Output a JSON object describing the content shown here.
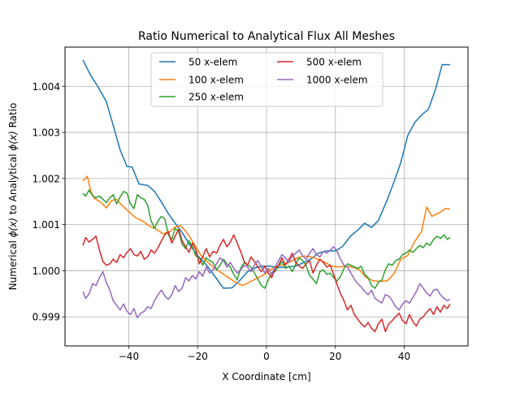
{
  "chart_data": {
    "type": "line",
    "title": "Ratio Numerical to Analytical Flux All Meshes",
    "xlabel": "X Coordinate [cm]",
    "ylabel_parts": [
      "Numerical ",
      "ϕ(x)",
      " to Analytical ",
      "ϕ(x)",
      " Ratio"
    ],
    "xlim": [
      -58.5,
      58.5
    ],
    "ylim": [
      0.99837,
      1.00485
    ],
    "grid": true,
    "legend_position": "top-center",
    "x_ticks": [
      -40,
      -20,
      0,
      20,
      40
    ],
    "x_tick_labels": [
      "−40",
      "−20",
      "0",
      "20",
      "40"
    ],
    "y_ticks": [
      0.999,
      1.0,
      1.001,
      1.002,
      1.003,
      1.004
    ],
    "y_tick_labels": [
      "0.999",
      "1.000",
      "1.001",
      "1.002",
      "1.003",
      "1.004"
    ],
    "series": [
      {
        "name": "50 x-elem",
        "color": "#1f77b4",
        "x": [
          -53.3,
          -51,
          -49,
          -46.5,
          -44.5,
          -42.5,
          -40.5,
          -39,
          -37,
          -34.5,
          -32.5,
          -30.5,
          -28.5,
          -26.5,
          -24.5,
          -22,
          -20,
          -17.5,
          -15,
          -12.5,
          -10,
          -8,
          -5.5,
          -3,
          -1,
          1,
          3.5,
          6,
          8.5,
          10.5,
          13,
          15,
          17.5,
          20,
          22,
          24.5,
          26.5,
          28.5,
          30.5,
          32.5,
          35,
          37,
          39,
          41,
          43,
          45,
          47,
          49,
          51,
          53.3
        ],
        "y": [
          1.00457,
          1.00423,
          1.004,
          1.00367,
          1.00315,
          1.00262,
          1.00226,
          1.00225,
          1.00188,
          1.00185,
          1.00172,
          1.00149,
          1.00124,
          1.00103,
          1.00083,
          1.00053,
          1.00033,
          1.00013,
          0.99988,
          0.99962,
          0.99963,
          0.99977,
          0.99998,
          1.00007,
          1.0001,
          1.0001,
          1.00007,
          1.00008,
          1.0001,
          1.00017,
          1.00026,
          1.00038,
          1.00043,
          1.00043,
          1.00052,
          1.00076,
          1.00088,
          1.00103,
          1.00094,
          1.00109,
          1.00153,
          1.00192,
          1.00235,
          1.00293,
          1.00321,
          1.00338,
          1.0035,
          1.00392,
          1.00447,
          1.00447
        ]
      },
      {
        "name": "100 x-elem",
        "color": "#ff7f0e",
        "x": [
          -53.3,
          -52,
          -51,
          -50,
          -48,
          -46.5,
          -45,
          -43.5,
          -42,
          -40,
          -38,
          -36,
          -34,
          -32,
          -30,
          -28,
          -26.5,
          -25,
          -23,
          -21,
          -19,
          -17,
          -15,
          -13,
          -11,
          -9,
          -7,
          -5,
          -3,
          -1,
          1,
          3,
          5,
          7,
          9,
          11,
          13,
          15,
          17,
          19,
          21,
          23,
          25,
          27,
          29,
          31,
          33,
          35,
          37,
          39,
          41,
          43,
          45,
          46.5,
          48,
          50,
          52,
          53.3
        ],
        "y": [
          1.00195,
          1.00205,
          1.00172,
          1.00157,
          1.00148,
          1.00136,
          1.00152,
          1.00155,
          1.00142,
          1.00128,
          1.00115,
          1.00108,
          1.00097,
          1.0009,
          1.0008,
          1.00085,
          1.00095,
          1.00098,
          1.00082,
          1.00058,
          1.00033,
          1.00018,
          1.00005,
          0.99995,
          0.99985,
          0.99975,
          0.99968,
          0.99975,
          0.99983,
          0.9999,
          1.00002,
          1.0001,
          1.00013,
          1.0002,
          1.00028,
          1.00032,
          1.0003,
          1.00025,
          1.00018,
          1.0001,
          1.00008,
          1.0001,
          1.00008,
          1.00002,
          0.99985,
          0.99978,
          0.99977,
          0.99978,
          0.99993,
          1.00025,
          1.00033,
          1.00063,
          1.00085,
          1.00138,
          1.00118,
          1.00125,
          1.00135,
          1.00134
        ]
      },
      {
        "name": "250 x-elem",
        "color": "#2ca02c",
        "x": [
          -53.3,
          -52.5,
          -51.5,
          -50.5,
          -49.5,
          -48.5,
          -47.5,
          -46.5,
          -45.5,
          -44.5,
          -43.5,
          -42.5,
          -41.5,
          -40.5,
          -39.5,
          -38.5,
          -37.5,
          -36.5,
          -35.5,
          -34.5,
          -33.5,
          -32.5,
          -31.5,
          -30.5,
          -29.5,
          -28.5,
          -27.5,
          -26.5,
          -25.5,
          -24.5,
          -23.5,
          -22.5,
          -21.5,
          -20.5,
          -19.5,
          -18.5,
          -17.5,
          -16.5,
          -15.5,
          -14.5,
          -13.5,
          -12.5,
          -11.5,
          -10.5,
          -9.5,
          -8.5,
          -7.5,
          -6.5,
          -5.5,
          -4.5,
          -3.5,
          -2.5,
          -1.5,
          -0.5,
          0.5,
          1.5,
          2.5,
          3.5,
          4.5,
          5.5,
          6.5,
          7.5,
          8.5,
          9.5,
          10.5,
          11.5,
          12.5,
          13.5,
          14.5,
          15.5,
          16.5,
          17.5,
          18.5,
          19.5,
          20.5,
          21.5,
          22.5,
          23.5,
          24.5,
          25.5,
          26.5,
          27.5,
          28.5,
          29.5,
          30.5,
          31.5,
          32.5,
          33.5,
          34.5,
          35.5,
          36.5,
          37.5,
          38.5,
          39.5,
          40.5,
          41.5,
          42.5,
          43.5,
          44.5,
          45.5,
          46.5,
          47.5,
          48.5,
          49.5,
          50.5,
          51.5,
          52.5,
          53.3
        ],
        "y": [
          1.00168,
          1.00162,
          1.00175,
          1.00163,
          1.00158,
          1.00162,
          1.00155,
          1.00148,
          1.00158,
          1.00165,
          1.00145,
          1.0016,
          1.00172,
          1.00168,
          1.00145,
          1.00135,
          1.00165,
          1.00158,
          1.00155,
          1.00142,
          1.00108,
          1.00092,
          1.00108,
          1.00118,
          1.00112,
          1.00078,
          1.00068,
          1.00092,
          1.00085,
          1.00058,
          1.00048,
          1.00065,
          1.00052,
          1.00032,
          1.00028,
          1.00012,
          1.00028,
          1.00022,
          1.00018,
          1.00002,
          1.00012,
          1.00025,
          1.00015,
          1.00008,
          0.99992,
          0.9998,
          1.00005,
          1.00018,
          1.00012,
          1.00008,
          0.99995,
          0.99982,
          0.99968,
          0.99962,
          0.9998,
          0.99995,
          0.99998,
          1.0001,
          1.0002,
          1.00005,
          1.0001,
          0.99998,
          1.00015,
          1.00028,
          1.00022,
          1.00012,
          0.9999,
          0.99982,
          0.99972,
          0.99998,
          1.00002,
          0.99992,
          0.99995,
          0.99985,
          0.99978,
          0.99988,
          1.00005,
          1.00015,
          1.00012,
          1.00008,
          1.00005,
          1.0001,
          0.99992,
          0.99985,
          0.99968,
          0.99962,
          0.99975,
          0.9998,
          1.00002,
          1.00015,
          1.00012,
          1.00022,
          1.00025,
          1.00035,
          1.00038,
          1.00045,
          1.0004,
          1.00048,
          1.00055,
          1.0005,
          1.0006,
          1.00055,
          1.00068,
          1.00075,
          1.0007,
          1.00078,
          1.00068,
          1.00072
        ]
      },
      {
        "name": "500 x-elem",
        "color": "#d62728",
        "x": [
          -53.3,
          -52.5,
          -51.5,
          -50.5,
          -49.5,
          -48.5,
          -47.5,
          -46.5,
          -45.5,
          -44.5,
          -43.5,
          -42.5,
          -41.5,
          -40.5,
          -39.5,
          -38.5,
          -37.5,
          -36.5,
          -35.5,
          -34.5,
          -33.5,
          -32.5,
          -31.5,
          -30.5,
          -29.5,
          -28.5,
          -27.5,
          -26.5,
          -25.5,
          -24.5,
          -23.5,
          -22.5,
          -21.5,
          -20.5,
          -19.5,
          -18.5,
          -17.5,
          -16.5,
          -15.5,
          -14.5,
          -13.5,
          -12.5,
          -11.5,
          -10.5,
          -9.5,
          -8.5,
          -7.5,
          -6.5,
          -5.5,
          -4.5,
          -3.5,
          -2.5,
          -1.5,
          -0.5,
          0.5,
          1.5,
          2.5,
          3.5,
          4.5,
          5.5,
          6.5,
          7.5,
          8.5,
          9.5,
          10.5,
          11.5,
          12.5,
          13.5,
          14.5,
          15.5,
          16.5,
          17.5,
          18.5,
          19.5,
          20.5,
          21.5,
          22.5,
          23.5,
          24.5,
          25.5,
          26.5,
          27.5,
          28.5,
          29.5,
          30.5,
          31.5,
          32.5,
          33.5,
          34.5,
          35.5,
          36.5,
          37.5,
          38.5,
          39.5,
          40.5,
          41.5,
          42.5,
          43.5,
          44.5,
          45.5,
          46.5,
          47.5,
          48.5,
          49.5,
          50.5,
          51.5,
          52.5,
          53.3
        ],
        "y": [
          1.00055,
          1.00072,
          1.00062,
          1.00068,
          1.00075,
          1.00045,
          1.0002,
          1.00012,
          1.00015,
          1.00025,
          1.00018,
          1.00035,
          1.00028,
          1.0004,
          1.00048,
          1.00035,
          1.00032,
          1.00042,
          1.00025,
          1.0003,
          1.00045,
          1.00038,
          1.0005,
          1.00065,
          1.00078,
          1.00085,
          1.0006,
          1.00075,
          1.0009,
          1.00065,
          1.00052,
          1.0004,
          1.0006,
          1.00045,
          1.00015,
          1.0003,
          1.00048,
          1.0003,
          1.00042,
          1.00038,
          1.00055,
          1.00068,
          1.00052,
          1.00062,
          1.00078,
          1.0006,
          1.00042,
          1.0002,
          1.00012,
          1.0003,
          1.0002,
          1.00008,
          0.99998,
          1.0001,
          0.99995,
          0.99985,
          1.00005,
          1.00012,
          1.00028,
          1.00012,
          1.00025,
          1.00038,
          1.00018,
          1.0001,
          1.00005,
          1.00015,
          1.00022,
          0.99995,
          1.00012,
          1.00025,
          1.00018,
          1.00008,
          1.00012,
          0.99992,
          0.9997,
          0.9995,
          0.99935,
          0.99915,
          0.99925,
          0.99905,
          0.99895,
          0.99885,
          0.99878,
          0.99888,
          0.99875,
          0.99868,
          0.99885,
          0.99895,
          0.99868,
          0.99885,
          0.99892,
          0.999,
          0.99908,
          0.99892,
          0.99885,
          0.99905,
          0.9989,
          0.9988,
          0.99895,
          0.999,
          0.9991,
          0.99918,
          0.99905,
          0.99922,
          0.9991,
          0.99925,
          0.99918,
          0.99928
        ]
      },
      {
        "name": "1000 x-elem",
        "color": "#9467bd",
        "x": [
          -53.3,
          -52.5,
          -51.5,
          -50.5,
          -49.5,
          -48.5,
          -47.5,
          -46.5,
          -45.5,
          -44.5,
          -43.5,
          -42.5,
          -41.5,
          -40.5,
          -39.5,
          -38.5,
          -37.5,
          -36.5,
          -35.5,
          -34.5,
          -33.5,
          -32.5,
          -31.5,
          -30.5,
          -29.5,
          -28.5,
          -27.5,
          -26.5,
          -25.5,
          -24.5,
          -23.5,
          -22.5,
          -21.5,
          -20.5,
          -19.5,
          -18.5,
          -17.5,
          -16.5,
          -15.5,
          -14.5,
          -13.5,
          -12.5,
          -11.5,
          -10.5,
          -9.5,
          -8.5,
          -7.5,
          -6.5,
          -5.5,
          -4.5,
          -3.5,
          -2.5,
          -1.5,
          -0.5,
          0.5,
          1.5,
          2.5,
          3.5,
          4.5,
          5.5,
          6.5,
          7.5,
          8.5,
          9.5,
          10.5,
          11.5,
          12.5,
          13.5,
          14.5,
          15.5,
          16.5,
          17.5,
          18.5,
          19.5,
          20.5,
          21.5,
          22.5,
          23.5,
          24.5,
          25.5,
          26.5,
          27.5,
          28.5,
          29.5,
          30.5,
          31.5,
          32.5,
          33.5,
          34.5,
          35.5,
          36.5,
          37.5,
          38.5,
          39.5,
          40.5,
          41.5,
          42.5,
          43.5,
          44.5,
          45.5,
          46.5,
          47.5,
          48.5,
          49.5,
          50.5,
          51.5,
          52.5,
          53.3
        ],
        "y": [
          0.99955,
          0.9994,
          0.9995,
          0.99972,
          0.99968,
          0.99985,
          0.99998,
          0.99975,
          0.99958,
          0.99935,
          0.99925,
          0.99915,
          0.99928,
          0.99912,
          0.99905,
          0.99918,
          0.99898,
          0.99908,
          0.99912,
          0.99922,
          0.99918,
          0.99935,
          0.99948,
          0.99958,
          0.99945,
          0.99938,
          0.99948,
          0.99968,
          0.99955,
          0.99962,
          0.99985,
          0.99978,
          0.9999,
          0.99982,
          0.99998,
          0.99988,
          1.00008,
          0.99995,
          1.00002,
          1.00015,
          1.00028,
          1.00022,
          1.00008,
          1.00018,
          1.00005,
          0.99995,
          1.00002,
          1.00012,
          1.00008,
          0.99998,
          1.00012,
          1.00022,
          1.00008,
          0.99995,
          1.00005,
          0.99992,
          1.00008,
          1.00022,
          1.00035,
          1.00028,
          1.00018,
          1.00032,
          1.00038,
          1.00045,
          1.00032,
          1.00025,
          1.00038,
          1.00048,
          1.00035,
          1.0003,
          1.00042,
          1.00038,
          1.00045,
          1.00052,
          1.00042,
          1.00025,
          1.00012,
          1.00008,
          0.99995,
          0.99982,
          0.99972,
          0.99965,
          0.99955,
          0.99948,
          0.99958,
          0.9994,
          0.99935,
          0.9993,
          0.99948,
          0.99945,
          0.99935,
          0.99922,
          0.99915,
          0.99928,
          0.99935,
          0.9993,
          0.99942,
          0.99955,
          0.99972,
          0.99962,
          0.99952,
          0.99945,
          0.99958,
          0.9996,
          0.99948,
          0.9994,
          0.99935,
          0.99938
        ]
      }
    ]
  }
}
